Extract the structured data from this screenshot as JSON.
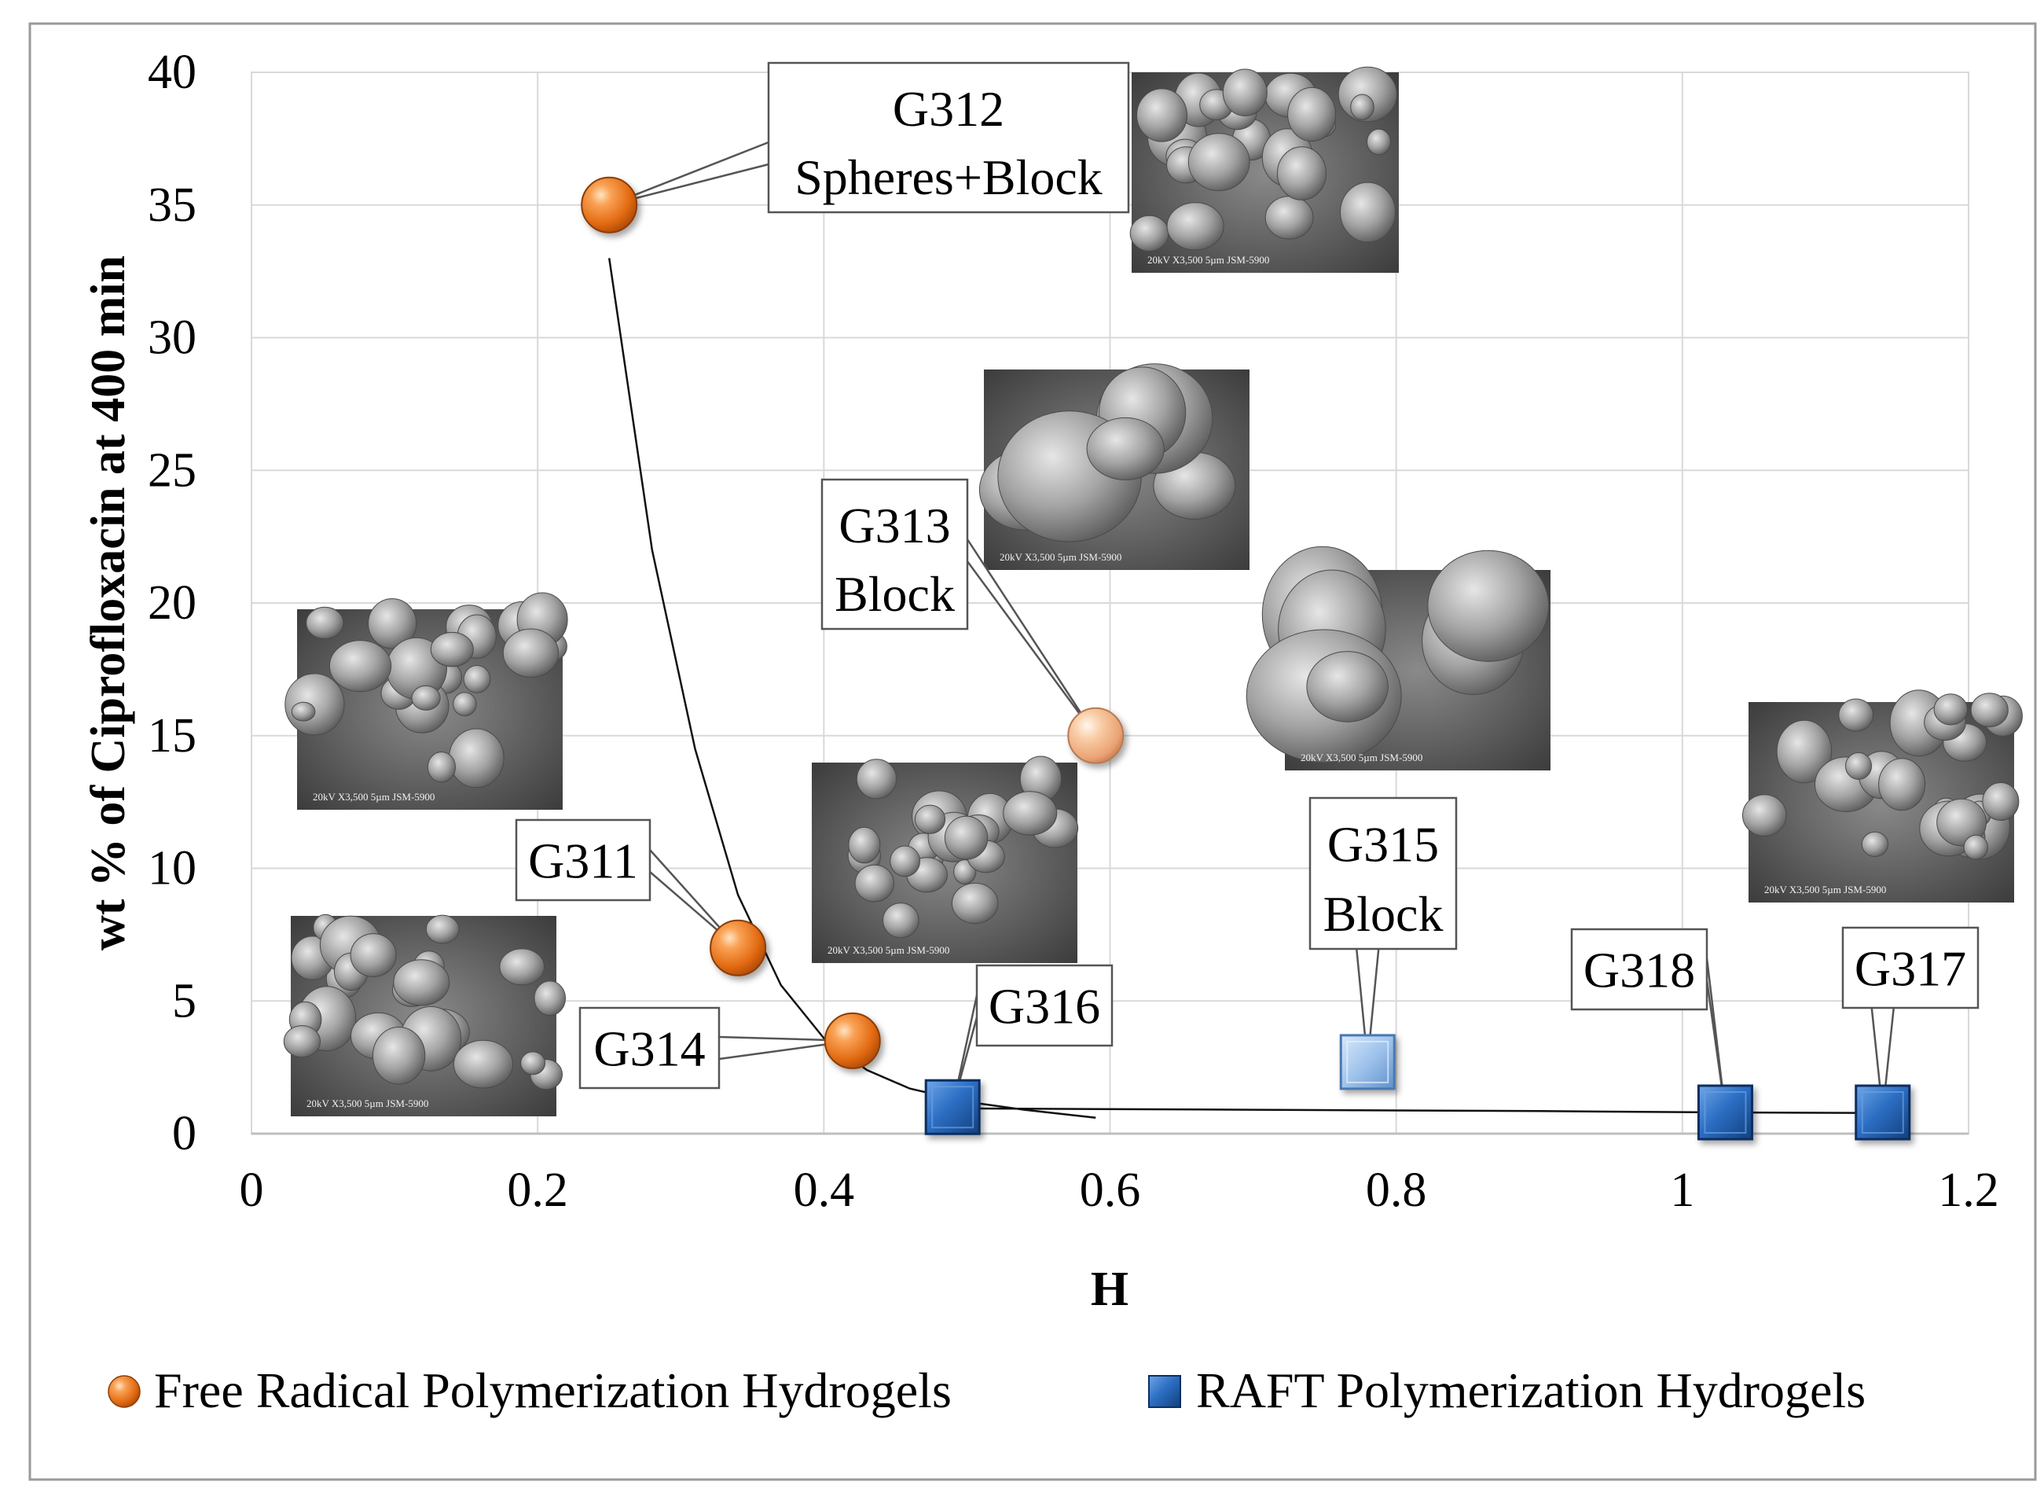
{
  "chart_data": {
    "type": "scatter",
    "title": "",
    "xlabel": "H",
    "ylabel": "wt % of Ciprofloxacin at 400 min",
    "xlim": [
      0,
      1.2
    ],
    "ylim": [
      0,
      40
    ],
    "x_ticks": [
      0,
      0.2,
      0.4,
      0.6,
      0.8,
      1,
      1.2
    ],
    "x_tick_labels": [
      "0",
      "0.2",
      "0.4",
      "0.6",
      "0.8",
      "1",
      "1.2"
    ],
    "y_ticks": [
      0,
      5,
      10,
      15,
      20,
      25,
      30,
      35,
      40
    ],
    "y_tick_labels": [
      "0",
      "5",
      "10",
      "15",
      "20",
      "25",
      "30",
      "35",
      "40"
    ],
    "grid": true,
    "legend_position": "bottom",
    "series": [
      {
        "name": "Free Radical Polymerization Hydrogels",
        "marker": "sphere",
        "color": "#E8761E",
        "points": [
          {
            "id": "G312",
            "x": 0.25,
            "y": 35.0,
            "label": "G312",
            "sublabel": "Spheres+Block"
          },
          {
            "id": "G311",
            "x": 0.34,
            "y": 7.0,
            "label": "G311",
            "sublabel": ""
          },
          {
            "id": "G314",
            "x": 0.42,
            "y": 3.5,
            "label": "G314",
            "sublabel": ""
          },
          {
            "id": "G313",
            "x": 0.59,
            "y": 15.0,
            "label": "G313",
            "sublabel": "Block",
            "light": true
          }
        ]
      },
      {
        "name": "RAFT Polymerization Hydrogels",
        "marker": "cube",
        "color": "#1E5FB0",
        "points": [
          {
            "id": "G316",
            "x": 0.49,
            "y": 1.0,
            "label": "G316",
            "sublabel": ""
          },
          {
            "id": "G315",
            "x": 0.78,
            "y": 2.7,
            "label": "G315",
            "sublabel": "Block",
            "light": true
          },
          {
            "id": "G318",
            "x": 1.03,
            "y": 0.8,
            "label": "G318",
            "sublabel": ""
          },
          {
            "id": "G317",
            "x": 1.14,
            "y": 0.8,
            "label": "G317",
            "sublabel": ""
          }
        ]
      }
    ],
    "trendlines": [
      {
        "name": "free-radical-trend",
        "points": [
          [
            0.25,
            33
          ],
          [
            0.28,
            22
          ],
          [
            0.31,
            14.5
          ],
          [
            0.34,
            9
          ],
          [
            0.37,
            5.6
          ],
          [
            0.4,
            3.6
          ],
          [
            0.43,
            2.4
          ],
          [
            0.46,
            1.7
          ],
          [
            0.5,
            1.2
          ],
          [
            0.54,
            0.9
          ],
          [
            0.59,
            0.6
          ]
        ]
      },
      {
        "name": "raft-trend",
        "points": [
          [
            0.49,
            0.95
          ],
          [
            0.7,
            0.9
          ],
          [
            0.9,
            0.85
          ],
          [
            1.03,
            0.8
          ],
          [
            1.14,
            0.78
          ]
        ]
      }
    ],
    "insets": [
      {
        "name": "sem-image-g312",
        "kind": "SEM micrograph"
      },
      {
        "name": "sem-image-g313",
        "kind": "SEM micrograph"
      },
      {
        "name": "sem-image-g315",
        "kind": "SEM micrograph"
      },
      {
        "name": "sem-image-g311-top",
        "kind": "SEM micrograph"
      },
      {
        "name": "sem-image-g311-bottom",
        "kind": "SEM micrograph"
      },
      {
        "name": "sem-image-g316",
        "kind": "SEM micrograph"
      },
      {
        "name": "sem-image-g317",
        "kind": "SEM micrograph"
      }
    ],
    "sem_caption": [
      "20kV",
      "X3,500",
      "5µm",
      "JSM-5900"
    ]
  }
}
